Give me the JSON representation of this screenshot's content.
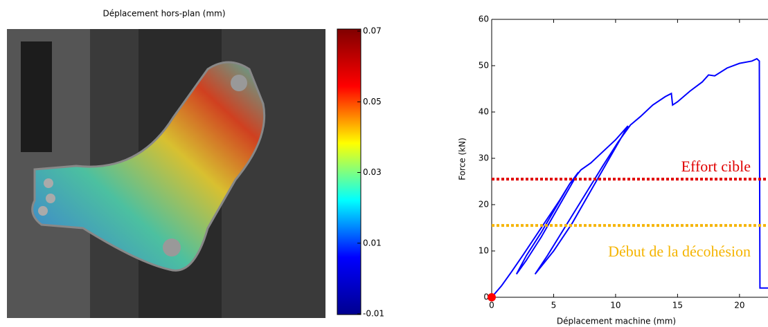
{
  "chart_data": [
    {
      "type": "heatmap",
      "title": "Déplacement hors-plan (mm)",
      "colormap": "jet",
      "clim": [
        -0.01,
        0.07
      ],
      "cticks": [
        -0.01,
        0.01,
        0.03,
        0.05,
        0.07
      ]
    },
    {
      "type": "line",
      "xlabel": "Déplacement machine (mm)",
      "ylabel": "Force (kN)",
      "xlim": [
        0,
        22.3
      ],
      "ylim": [
        0,
        60
      ],
      "xticks": [
        0,
        5,
        10,
        15,
        20
      ],
      "yticks": [
        0,
        10,
        20,
        30,
        40,
        50,
        60
      ],
      "start_point": {
        "x": 0,
        "y": 0,
        "color": "#ff0000"
      },
      "series": [
        {
          "color": "#0000ff",
          "x": [
            0,
            0.8,
            1.6,
            2.5,
            3.5,
            4.5,
            5.5,
            6.3,
            7,
            5.5,
            4,
            2.8,
            2,
            2.8,
            4,
            5.2,
            6.3,
            7.2,
            8,
            9,
            10,
            11,
            9.5,
            8,
            6.5,
            5,
            3.5,
            4.5,
            6,
            7.5,
            9,
            10.2,
            11.2,
            12,
            13,
            14,
            14.5,
            14.6,
            15,
            16,
            17,
            17.5,
            18,
            19,
            20,
            21,
            21.4,
            21.6,
            21.65,
            22.3
          ],
          "values": [
            0,
            2.5,
            5.5,
            9,
            13,
            17,
            21,
            24.5,
            27,
            20,
            13,
            8,
            5,
            9,
            14,
            19.5,
            24.5,
            27.5,
            29,
            31.5,
            34,
            37,
            30,
            23,
            16,
            10,
            5,
            9,
            15.5,
            22,
            28.5,
            33.5,
            37.2,
            39,
            41.5,
            43.3,
            44,
            41.5,
            42.2,
            44.5,
            46.5,
            48,
            47.8,
            49.5,
            50.5,
            51,
            51.5,
            51,
            2,
            2
          ]
        }
      ],
      "hlines": [
        {
          "value": 25.5,
          "color": "#e00000",
          "label": "Effort cible"
        },
        {
          "value": 15.5,
          "color": "#f5b400",
          "label": "Début de la décohésion"
        }
      ]
    }
  ]
}
